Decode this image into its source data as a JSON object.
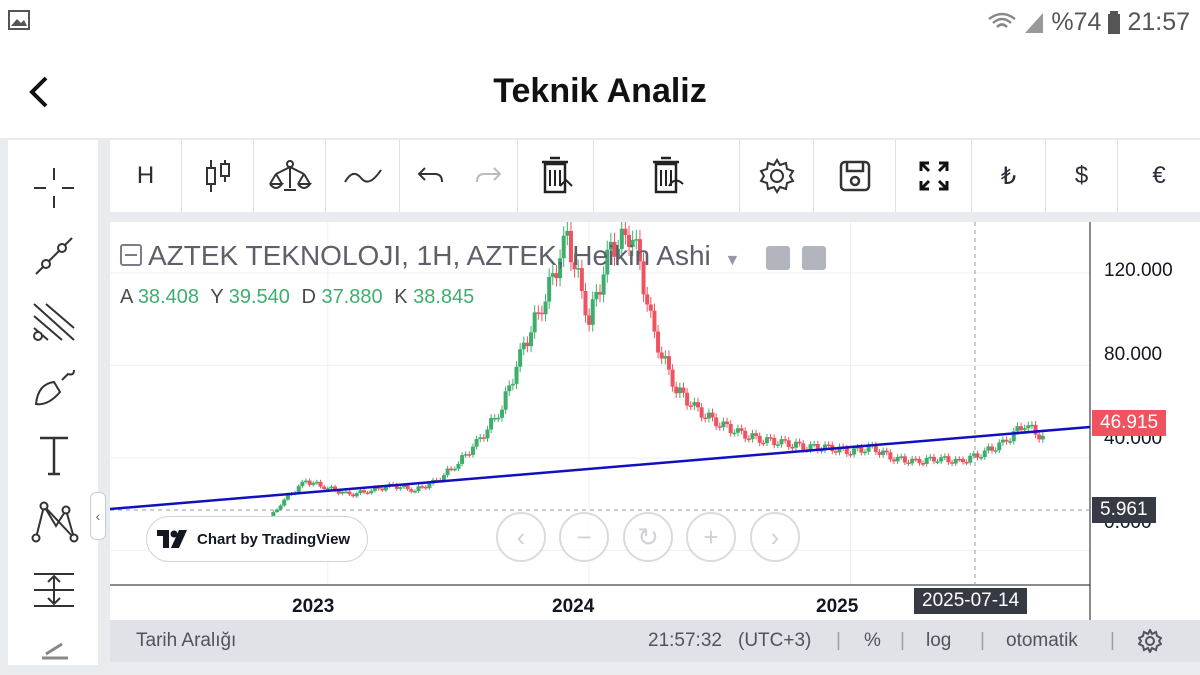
{
  "status_bar": {
    "battery": "%74",
    "time": "21:57"
  },
  "app_bar": {
    "title": "Teknik Analiz"
  },
  "toolbar": {
    "interval": "H",
    "currency_try": "₺",
    "currency_usd": "$",
    "currency_eur": "€"
  },
  "chart": {
    "legend_title": "AZTEK TEKNOLOJI, 1H, AZTEK, Heikin Ashi",
    "ohlc": {
      "a_label": "A",
      "a": "38.408",
      "y_label": "Y",
      "y": "39.540",
      "d_label": "D",
      "d": "37.880",
      "k_label": "K",
      "k": "38.845"
    },
    "y_ticks": [
      "120.000",
      "80.000",
      "40.000",
      "0.000"
    ],
    "x_ticks": [
      "2023",
      "2024",
      "2025"
    ],
    "last_price": "46.915",
    "line_price": "5.961",
    "crosshair_date": "2025-07-14",
    "tradingview_badge": "Chart by TradingView",
    "colors": {
      "up": "#3fae6d",
      "down": "#f0525f",
      "trendline": "#1010c0"
    }
  },
  "bottom_bar": {
    "range_label": "Tarih Aralığı",
    "clock": "21:57:32",
    "timezone": "(UTC+3)",
    "percent": "%",
    "log": "log",
    "auto": "otomatik"
  },
  "chart_data": {
    "type": "candlestick",
    "ylim": [
      -15,
      142
    ],
    "x_ticks": [
      "2023",
      "2024",
      "2025"
    ],
    "y_ticks": [
      0,
      40,
      80,
      120
    ],
    "series": [
      {
        "x": [
          "2022-09",
          "2022-10",
          "2022-11",
          "2022-12",
          "2023-01",
          "2023-02",
          "2023-03",
          "2023-04",
          "2023-05",
          "2023-06",
          "2023-07",
          "2023-08",
          "2023-09",
          "2023-10",
          "2023-11",
          "2023-12",
          "2024-01",
          "2024-02",
          "2024-03",
          "2024-04",
          "2024-05",
          "2024-06",
          "2024-07",
          "2024-08",
          "2024-09",
          "2024-10",
          "2024-11",
          "2024-12",
          "2025-01",
          "2025-02",
          "2025-03",
          "2025-04",
          "2025-05",
          "2025-06",
          "2025-07",
          "2025-08",
          "2025-09",
          "2025-10"
        ],
        "values": [
          6,
          10,
          22,
          30,
          27,
          24,
          26,
          28,
          26,
          30,
          38,
          48,
          62,
          88,
          110,
          135,
          100,
          130,
          138,
          92,
          70,
          60,
          55,
          50,
          48,
          46,
          45,
          44,
          43,
          44,
          40,
          38,
          40,
          38,
          42,
          46,
          55,
          46.9
        ]
      }
    ],
    "trendline": {
      "from": [
        "2022-03",
        6
      ],
      "to": [
        "2025-12",
        46
      ]
    }
  }
}
